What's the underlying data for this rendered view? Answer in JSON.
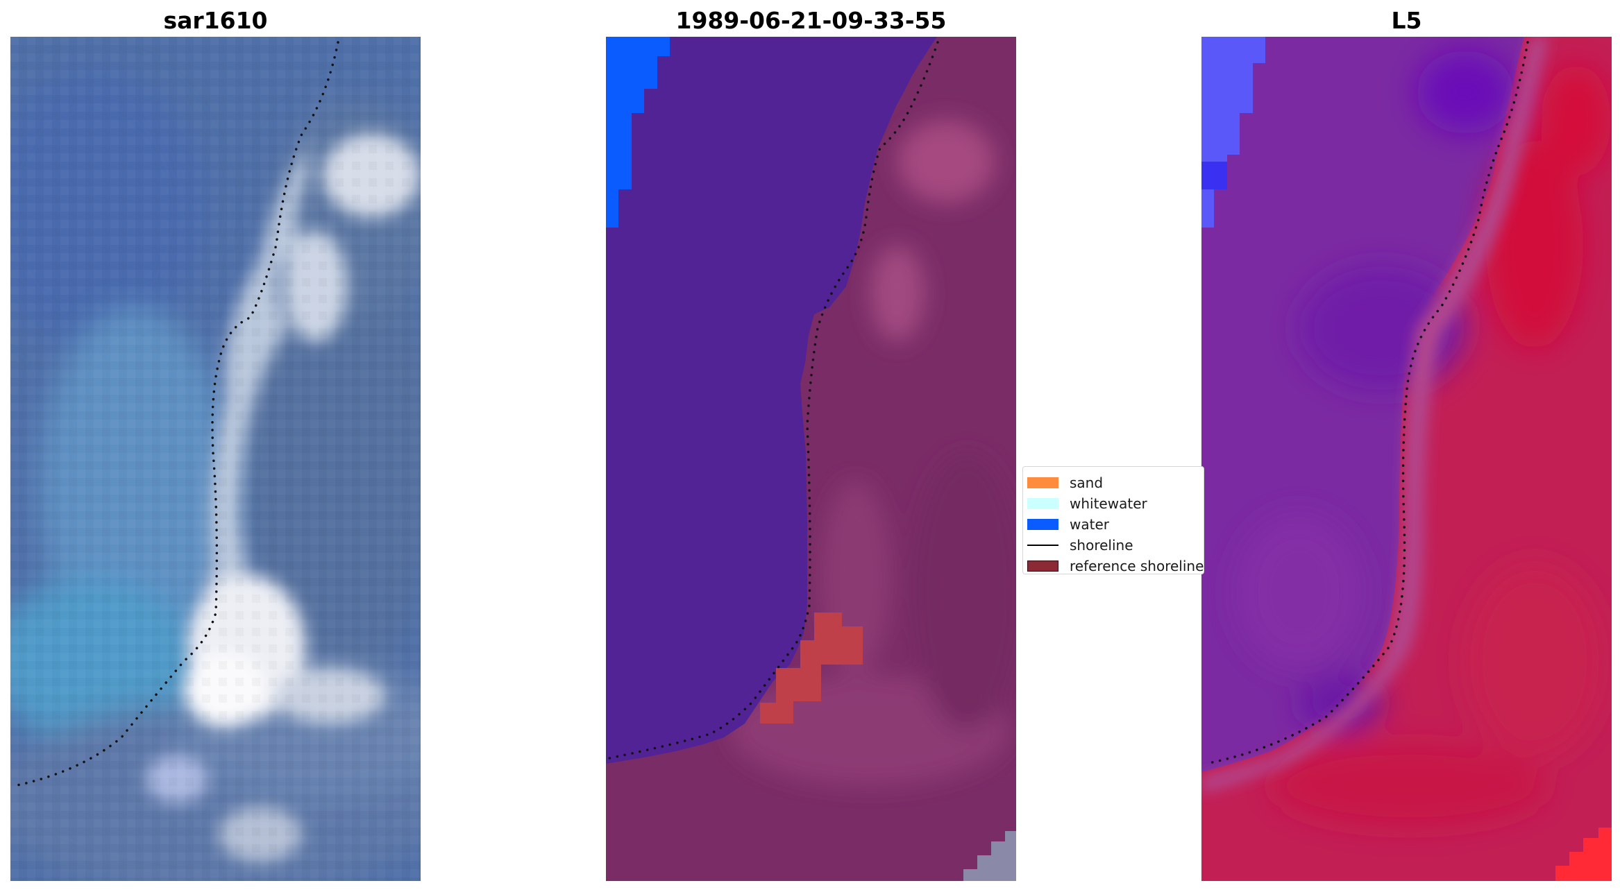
{
  "panels": [
    {
      "title": "sar1610"
    },
    {
      "title": "1989-06-21-09-33-55"
    },
    {
      "title": "L5"
    }
  ],
  "legend": {
    "entries": [
      {
        "label": "sand",
        "kind": "patch",
        "color": "#ff8c3c"
      },
      {
        "label": "whitewater",
        "kind": "patch",
        "color": "#ccffff"
      },
      {
        "label": "water",
        "kind": "patch",
        "color": "#0a5cff"
      },
      {
        "label": "shoreline",
        "kind": "line",
        "color": "#000000"
      },
      {
        "label": "reference shoreline",
        "kind": "patch",
        "color": "#8b2a35"
      }
    ]
  },
  "colors": {
    "true_color_water": "#4a6fb0",
    "true_color_surf": "#f2f2f5",
    "classified_water": "#0a5cff",
    "classified_deep": "#4f2290",
    "classified_land": "#7a2c66",
    "classified_sand": "#c0404a",
    "index_low": "#6a1fb0",
    "index_high": "#d4163e"
  }
}
